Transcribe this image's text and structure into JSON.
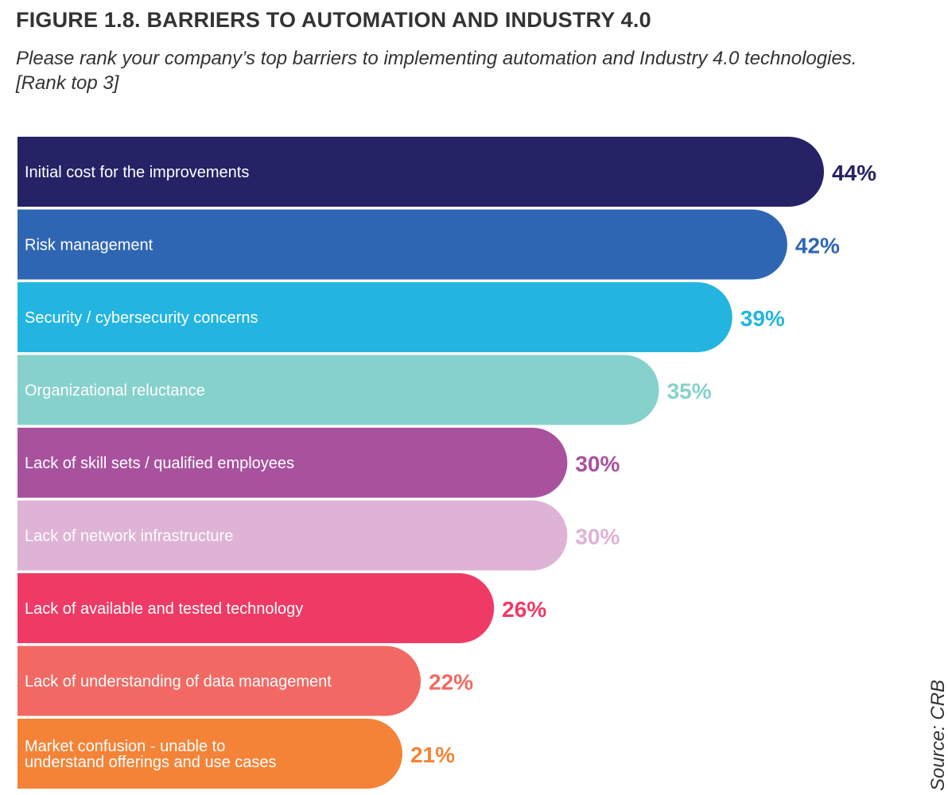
{
  "chart_data": {
    "type": "bar",
    "orientation": "horizontal",
    "title": "FIGURE 1.8. BARRIERS TO AUTOMATION AND INDUSTRY 4.0",
    "subtitle": "Please rank your company’s top barriers to implementing automation and Industry 4.0 technologies. [Rank top 3]",
    "source": "Source: CRB",
    "xlim": [
      0,
      44
    ],
    "categories": [
      "Initial cost for the improvements",
      "Risk management",
      "Security / cybersecurity concerns",
      "Organizational reluctance",
      "Lack of skill sets / qualified employees",
      "Lack of network infrastructure",
      "Lack of available and tested technology",
      "Lack of understanding of data management",
      "Market confusion - unable to\nunderstand offerings and use cases"
    ],
    "values": [
      44,
      42,
      39,
      35,
      30,
      30,
      26,
      22,
      21
    ],
    "value_labels": [
      "44%",
      "42%",
      "39%",
      "35%",
      "30%",
      "30%",
      "26%",
      "22%",
      "21%"
    ],
    "colors": [
      "#252266",
      "#2f66b3",
      "#23b5e0",
      "#86d1cc",
      "#a8529e",
      "#deb3d5",
      "#ef3a65",
      "#f26963",
      "#f58337"
    ]
  }
}
